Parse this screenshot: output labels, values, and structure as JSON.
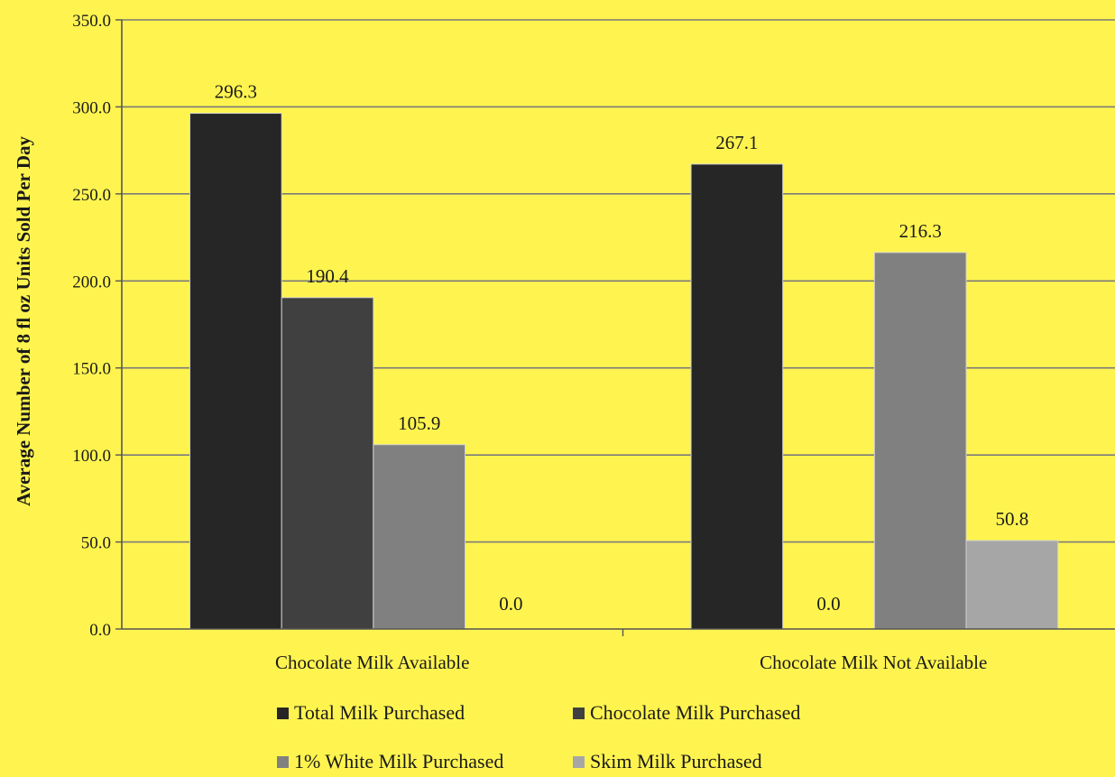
{
  "chart_data": {
    "type": "bar",
    "title": "",
    "xlabel": "",
    "ylabel": "Average Number of 8 fl oz Units Sold Per Day",
    "ylim": [
      0,
      350
    ],
    "yticks": [
      "0.0",
      "50.0",
      "100.0",
      "150.0",
      "200.0",
      "250.0",
      "300.0",
      "350.0"
    ],
    "grid": true,
    "legend_position": "bottom",
    "background_color": "#FFF44F",
    "categories": [
      "Chocolate Milk Available",
      "Chocolate Milk Not Available"
    ],
    "series": [
      {
        "name": "Total Milk Purchased",
        "color": "#262626",
        "values": [
          296.3,
          267.1
        ],
        "labels": [
          "296.3",
          "267.1"
        ]
      },
      {
        "name": "Chocolate Milk Purchased",
        "color": "#404040",
        "values": [
          190.4,
          0.0
        ],
        "labels": [
          "190.4",
          "0.0"
        ]
      },
      {
        "name": "1% White Milk Purchased",
        "color": "#808080",
        "values": [
          105.9,
          216.3
        ],
        "labels": [
          "105.9",
          "216.3"
        ]
      },
      {
        "name": "Skim Milk Purchased",
        "color": "#A6A6A6",
        "values": [
          0.0,
          50.8
        ],
        "labels": [
          "0.0",
          "50.8"
        ]
      }
    ]
  }
}
